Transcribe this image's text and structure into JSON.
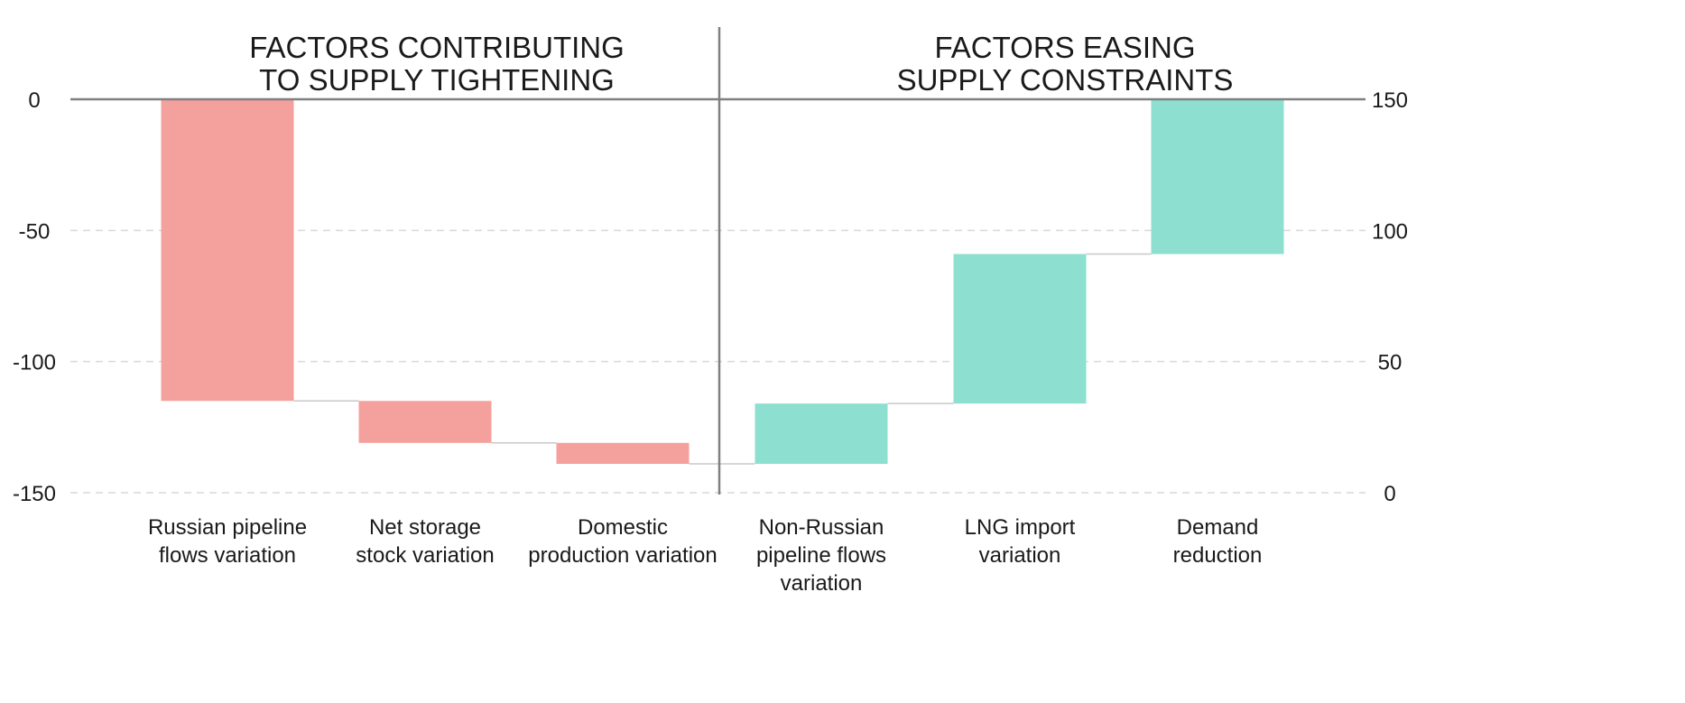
{
  "chart_data": {
    "type": "waterfall",
    "section_titles": {
      "left": [
        "FACTORS CONTRIBUTING",
        "TO SUPPLY TIGHTENING"
      ],
      "right": [
        "FACTORS EASING",
        "SUPPLY CONSTRAINTS"
      ]
    },
    "left_axis": {
      "ticks": [
        "0",
        "-50",
        "-100",
        "-150"
      ],
      "values": [
        0,
        -50,
        -100,
        -150
      ],
      "ylim": [
        -150,
        0
      ]
    },
    "right_axis": {
      "ticks": [
        "150",
        "100",
        "50",
        "0"
      ],
      "values": [
        150,
        100,
        50,
        0
      ],
      "ylim": [
        0,
        150
      ]
    },
    "categories": [
      [
        "Russian pipeline",
        "flows variation"
      ],
      [
        "Net storage",
        "stock variation"
      ],
      [
        "Domestic",
        "production variation"
      ],
      [
        "Non-Russian",
        "pipeline flows",
        "variation"
      ],
      [
        "LNG import",
        "variation"
      ],
      [
        "Demand",
        "reduction"
      ]
    ],
    "bars": [
      {
        "group": "tightening",
        "start": 0,
        "end": -115
      },
      {
        "group": "tightening",
        "start": -115,
        "end": -131
      },
      {
        "group": "tightening",
        "start": -131,
        "end": -139
      },
      {
        "group": "easing",
        "start": -139,
        "end": -116
      },
      {
        "group": "easing",
        "start": -116,
        "end": -59
      },
      {
        "group": "easing",
        "start": -59,
        "end": 0
      }
    ],
    "colors": {
      "tightening": "#f4a09c",
      "easing": "#8ddfcf",
      "axis": "#808080",
      "grid": "#d9d9d9",
      "connector": "#c8c8c8"
    },
    "grid": true
  }
}
